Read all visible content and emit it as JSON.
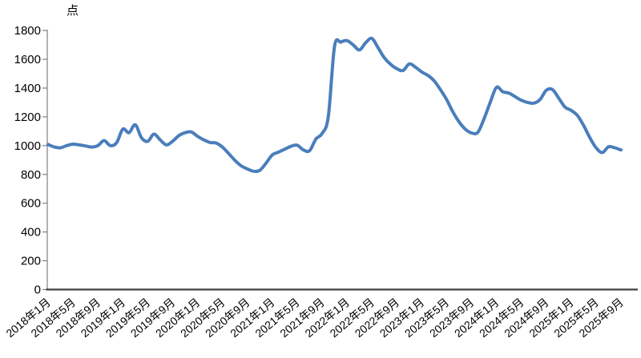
{
  "page": {
    "background": "#ffffff"
  },
  "chart_data": {
    "type": "line",
    "title": "",
    "xlabel": "",
    "ylabel": "点",
    "ylim": [
      0,
      1800
    ],
    "y_ticks": [
      0,
      200,
      400,
      600,
      800,
      1000,
      1200,
      1400,
      1600,
      1800
    ],
    "grid": false,
    "legend": null,
    "line_color": "#4A7EBB",
    "axis_color": "#404040",
    "tick_color": "#808080",
    "x_tick_labels": [
      "2018年1月",
      "2018年5月",
      "2018年9月",
      "2019年1月",
      "2019年5月",
      "2019年9月",
      "2020年1月",
      "2020年5月",
      "2020年9月",
      "2021年1月",
      "2021年5月",
      "2021年9月",
      "2022年1月",
      "2022年5月",
      "2022年9月",
      "2023年1月",
      "2023年5月",
      "2023年9月",
      "2024年1月",
      "2024年5月",
      "2024年9月",
      "2025年1月",
      "2025年5月",
      "2025年9月"
    ],
    "x": [
      "2018年1月",
      "2018年2月",
      "2018年3月",
      "2018年4月",
      "2018年5月",
      "2018年6月",
      "2018年7月",
      "2018年8月",
      "2018年9月",
      "2018年10月",
      "2018年11月",
      "2018年12月",
      "2019年1月",
      "2019年2月",
      "2019年3月",
      "2019年4月",
      "2019年5月",
      "2019年6月",
      "2019年7月",
      "2019年8月",
      "2019年9月",
      "2019年10月",
      "2019年11月",
      "2019年12月",
      "2020年1月",
      "2020年2月",
      "2020年3月",
      "2020年4月",
      "2020年5月",
      "2020年6月",
      "2020年7月",
      "2020年8月",
      "2020年9月",
      "2020年10月",
      "2020年11月",
      "2020年12月",
      "2021年1月",
      "2021年2月",
      "2021年3月",
      "2021年4月",
      "2021年5月",
      "2021年6月",
      "2021年7月",
      "2021年8月",
      "2021年9月",
      "2021年10月",
      "2021年11月",
      "2021年12月",
      "2022年1月",
      "2022年2月",
      "2022年3月",
      "2022年4月",
      "2022年5月",
      "2022年6月",
      "2022年7月",
      "2022年8月",
      "2022年9月",
      "2022年10月",
      "2022年11月",
      "2022年12月",
      "2023年1月",
      "2023年2月",
      "2023年3月",
      "2023年4月",
      "2023年5月",
      "2023年6月",
      "2023年7月",
      "2023年8月",
      "2023年9月",
      "2023年10月",
      "2023年11月",
      "2023年12月",
      "2024年1月",
      "2024年2月",
      "2024年3月",
      "2024年4月",
      "2024年5月",
      "2024年6月",
      "2024年7月",
      "2024年8月",
      "2024年9月",
      "2024年10月",
      "2024年11月",
      "2024年12月",
      "2025年1月",
      "2025年2月",
      "2025年3月",
      "2025年4月",
      "2025年5月",
      "2025年6月",
      "2025年7月",
      "2025年8月",
      "2025年9月"
    ],
    "values": [
      1008,
      990,
      985,
      1000,
      1010,
      1005,
      998,
      990,
      1000,
      1035,
      1000,
      1020,
      1115,
      1090,
      1145,
      1055,
      1030,
      1080,
      1040,
      1005,
      1030,
      1070,
      1090,
      1095,
      1065,
      1040,
      1022,
      1018,
      990,
      945,
      898,
      860,
      838,
      822,
      828,
      878,
      935,
      955,
      975,
      995,
      1003,
      970,
      965,
      1045,
      1085,
      1200,
      1690,
      1720,
      1730,
      1700,
      1665,
      1715,
      1745,
      1680,
      1610,
      1565,
      1535,
      1522,
      1568,
      1545,
      1512,
      1488,
      1450,
      1390,
      1320,
      1235,
      1165,
      1115,
      1088,
      1092,
      1185,
      1300,
      1405,
      1375,
      1365,
      1340,
      1315,
      1300,
      1295,
      1320,
      1385,
      1390,
      1330,
      1268,
      1245,
      1210,
      1140,
      1055,
      985,
      952,
      992,
      985,
      970
    ]
  }
}
